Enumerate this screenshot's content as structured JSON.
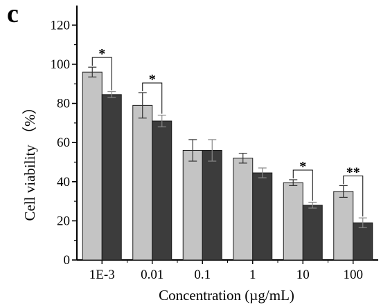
{
  "panel_label": "c",
  "chart_data": {
    "type": "bar",
    "categories": [
      "1E-3",
      "0.01",
      "0.1",
      "1",
      "10",
      "100"
    ],
    "series": [
      {
        "values": [
          96,
          79,
          56,
          52,
          39.5,
          35
        ],
        "errors": [
          2.5,
          6.5,
          5.5,
          2.5,
          1.5,
          3
        ],
        "color": "#c4c4c4"
      },
      {
        "values": [
          84.5,
          71,
          56,
          44.5,
          28,
          19
        ],
        "errors": [
          1.5,
          3,
          5.5,
          2.5,
          1.5,
          2.5
        ],
        "color": "#3c3c3c"
      }
    ],
    "significance": [
      "*",
      "*",
      "",
      "",
      "*",
      "**"
    ],
    "xlabel": "Concentration (µg/mL)",
    "ylabel": "Cell viability （%）",
    "ylim": [
      0,
      130
    ],
    "yticks": [
      0,
      20,
      40,
      60,
      80,
      100,
      120
    ],
    "grid": false,
    "legend": "none"
  }
}
